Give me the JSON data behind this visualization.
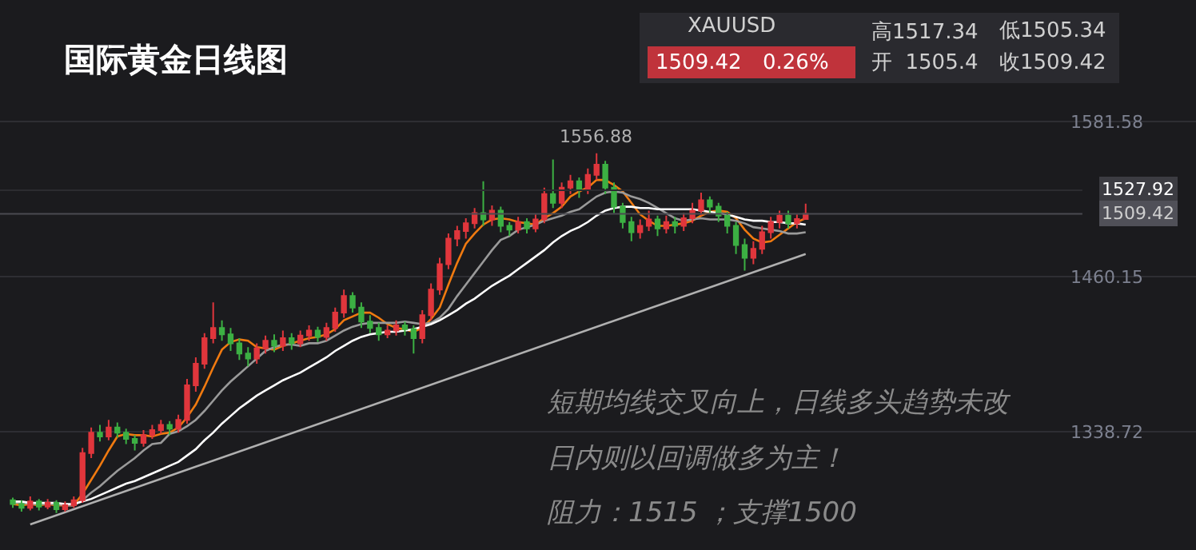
{
  "chart_data": {
    "type": "candlestick",
    "title": "国际黄金日线图",
    "categories": [
      null,
      null,
      null,
      null,
      null,
      null,
      null,
      null,
      null,
      null,
      null,
      null,
      null,
      null,
      null,
      null,
      null,
      null,
      null,
      null,
      null,
      null,
      null,
      null,
      null,
      null,
      null,
      null,
      null,
      null,
      null,
      null,
      null,
      null,
      null,
      null,
      null,
      null,
      null,
      null,
      null,
      null,
      null,
      null,
      null,
      null,
      null,
      null,
      null,
      null,
      null,
      null,
      null,
      null,
      null,
      null,
      null,
      null,
      null,
      null,
      null,
      null,
      null,
      null,
      null,
      null,
      null,
      null,
      null,
      null,
      null,
      null,
      null,
      null,
      null,
      null,
      null,
      null,
      null,
      null,
      null,
      null,
      null,
      null,
      null,
      null,
      null,
      null,
      null,
      null,
      null,
      null
    ],
    "ohlc": [
      [
        1285,
        1287,
        1279,
        1282
      ],
      [
        1282,
        1285,
        1276,
        1279
      ],
      [
        1279,
        1288,
        1277,
        1284
      ],
      [
        1284,
        1286,
        1277,
        1280
      ],
      [
        1280,
        1286,
        1278,
        1283
      ],
      [
        1283,
        1285,
        1275,
        1278
      ],
      [
        1278,
        1284,
        1276,
        1281
      ],
      [
        1281,
        1288,
        1279,
        1285
      ],
      [
        1285,
        1326,
        1283,
        1322
      ],
      [
        1322,
        1342,
        1318,
        1338
      ],
      [
        1338,
        1344,
        1331,
        1335
      ],
      [
        1335,
        1348,
        1332,
        1342
      ],
      [
        1342,
        1346,
        1334,
        1338
      ],
      [
        1338,
        1341,
        1329,
        1333
      ],
      [
        1333,
        1336,
        1324,
        1330
      ],
      [
        1330,
        1340,
        1327,
        1336
      ],
      [
        1336,
        1344,
        1333,
        1340
      ],
      [
        1340,
        1348,
        1337,
        1344
      ],
      [
        1344,
        1347,
        1336,
        1341
      ],
      [
        1341,
        1352,
        1338,
        1348
      ],
      [
        1348,
        1380,
        1345,
        1375
      ],
      [
        1375,
        1397,
        1370,
        1392
      ],
      [
        1392,
        1416,
        1388,
        1412
      ],
      [
        1412,
        1440,
        1408,
        1420
      ],
      [
        1420,
        1426,
        1410,
        1415
      ],
      [
        1415,
        1420,
        1402,
        1408
      ],
      [
        1408,
        1412,
        1395,
        1400
      ],
      [
        1400,
        1405,
        1390,
        1396
      ],
      [
        1396,
        1408,
        1392,
        1404
      ],
      [
        1404,
        1414,
        1400,
        1410
      ],
      [
        1410,
        1415,
        1401,
        1406
      ],
      [
        1406,
        1418,
        1402,
        1412
      ],
      [
        1412,
        1416,
        1403,
        1408
      ],
      [
        1408,
        1418,
        1405,
        1414
      ],
      [
        1414,
        1422,
        1410,
        1418
      ],
      [
        1418,
        1421,
        1409,
        1413
      ],
      [
        1413,
        1424,
        1410,
        1420
      ],
      [
        1420,
        1436,
        1417,
        1432
      ],
      [
        1432,
        1450,
        1428,
        1445
      ],
      [
        1445,
        1448,
        1432,
        1436
      ],
      [
        1436,
        1440,
        1420,
        1425
      ],
      [
        1425,
        1430,
        1416,
        1420
      ],
      [
        1420,
        1424,
        1410,
        1415
      ],
      [
        1415,
        1422,
        1412,
        1418
      ],
      [
        1418,
        1426,
        1414,
        1422
      ],
      [
        1422,
        1425,
        1414,
        1419
      ],
      [
        1419,
        1422,
        1400,
        1412
      ],
      [
        1412,
        1434,
        1408,
        1430
      ],
      [
        1430,
        1455,
        1426,
        1450
      ],
      [
        1450,
        1475,
        1446,
        1470
      ],
      [
        1470,
        1494,
        1466,
        1490
      ],
      [
        1490,
        1500,
        1484,
        1496
      ],
      [
        1496,
        1506,
        1490,
        1502
      ],
      [
        1502,
        1514,
        1498,
        1510
      ],
      [
        1510,
        1535,
        1500,
        1505
      ],
      [
        1505,
        1516,
        1500,
        1512
      ],
      [
        1512,
        1515,
        1495,
        1500
      ],
      [
        1500,
        1503,
        1492,
        1497
      ],
      [
        1497,
        1507,
        1494,
        1503
      ],
      [
        1503,
        1506,
        1494,
        1498
      ],
      [
        1498,
        1509,
        1495,
        1505
      ],
      [
        1505,
        1530,
        1502,
        1525
      ],
      [
        1525,
        1552,
        1514,
        1518
      ],
      [
        1518,
        1534,
        1514,
        1530
      ],
      [
        1530,
        1540,
        1525,
        1535
      ],
      [
        1535,
        1538,
        1522,
        1528
      ],
      [
        1528,
        1545,
        1525,
        1540
      ],
      [
        1540,
        1556.88,
        1536,
        1548
      ],
      [
        1548,
        1551,
        1525,
        1530
      ],
      [
        1530,
        1534,
        1510,
        1515
      ],
      [
        1515,
        1518,
        1498,
        1503
      ],
      [
        1503,
        1507,
        1488,
        1495
      ],
      [
        1495,
        1505,
        1490,
        1500
      ],
      [
        1500,
        1512,
        1496,
        1505
      ],
      [
        1505,
        1508,
        1492,
        1498
      ],
      [
        1498,
        1508,
        1494,
        1503
      ],
      [
        1503,
        1507,
        1494,
        1500
      ],
      [
        1500,
        1510,
        1496,
        1506
      ],
      [
        1506,
        1518,
        1502,
        1512
      ],
      [
        1512,
        1526,
        1508,
        1520
      ],
      [
        1520,
        1523,
        1510,
        1515
      ],
      [
        1515,
        1518,
        1503,
        1508
      ],
      [
        1508,
        1511,
        1494,
        1500
      ],
      [
        1500,
        1503,
        1478,
        1485
      ],
      [
        1485,
        1490,
        1465,
        1475
      ],
      [
        1475,
        1488,
        1470,
        1482
      ],
      [
        1482,
        1500,
        1478,
        1495
      ],
      [
        1495,
        1507,
        1490,
        1503
      ],
      [
        1503,
        1512,
        1498,
        1508
      ],
      [
        1508,
        1512,
        1498,
        1502
      ],
      [
        1502,
        1509,
        1498,
        1505.4
      ],
      [
        1505.4,
        1517.34,
        1505.34,
        1509.42
      ]
    ],
    "colors": [
      "#3cb043",
      "#3cb043",
      "#e0363c",
      "#3cb043",
      "#e0363c",
      "#3cb043",
      "#e0363c",
      "#e0363c",
      "#e0363c",
      "#e0363c",
      "#3cb043",
      "#e0363c",
      "#3cb043",
      "#3cb043",
      "#3cb043",
      "#e0363c",
      "#e0363c",
      "#e0363c",
      "#3cb043",
      "#e0363c",
      "#e0363c",
      "#e0363c",
      "#e0363c",
      "#e0363c",
      "#3cb043",
      "#3cb043",
      "#3cb043",
      "#3cb043",
      "#e0363c",
      "#e0363c",
      "#3cb043",
      "#e0363c",
      "#3cb043",
      "#e0363c",
      "#e0363c",
      "#3cb043",
      "#e0363c",
      "#e0363c",
      "#e0363c",
      "#3cb043",
      "#3cb043",
      "#3cb043",
      "#3cb043",
      "#e0363c",
      "#e0363c",
      "#3cb043",
      "#3cb043",
      "#e0363c",
      "#e0363c",
      "#e0363c",
      "#e0363c",
      "#e0363c",
      "#e0363c",
      "#e0363c",
      "#3cb043",
      "#e0363c",
      "#3cb043",
      "#3cb043",
      "#e0363c",
      "#3cb043",
      "#e0363c",
      "#e0363c",
      "#3cb043",
      "#e0363c",
      "#e0363c",
      "#3cb043",
      "#e0363c",
      "#e0363c",
      "#3cb043",
      "#3cb043",
      "#3cb043",
      "#3cb043",
      "#e0363c",
      "#e0363c",
      "#3cb043",
      "#e0363c",
      "#3cb043",
      "#e0363c",
      "#e0363c",
      "#e0363c",
      "#3cb043",
      "#3cb043",
      "#3cb043",
      "#3cb043",
      "#3cb043",
      "#e0363c",
      "#e0363c",
      "#e0363c",
      "#e0363c",
      "#3cb043",
      "#e0363c",
      "#e0363c"
    ],
    "series": [
      {
        "type": "line",
        "color": "#f07a10",
        "values": [
          1282,
          1281,
          1282,
          1281,
          1282,
          1281,
          1281,
          1281,
          1290,
          1301,
          1312,
          1324,
          1335,
          1337,
          1336,
          1336,
          1335,
          1337,
          1338,
          1342,
          1350,
          1360,
          1374,
          1389,
          1403,
          1409,
          1411,
          1410,
          1405,
          1404,
          1403,
          1406,
          1408,
          1410,
          1412,
          1413,
          1415,
          1419,
          1426,
          1429,
          1432,
          1432,
          1428,
          1423,
          1420,
          1419,
          1417,
          1420,
          1427,
          1436,
          1454,
          1471,
          1486,
          1494,
          1501,
          1505,
          1506,
          1505,
          1503,
          1502,
          1501,
          1506,
          1510,
          1515,
          1523,
          1527,
          1530,
          1536,
          1536,
          1532,
          1527,
          1518,
          1509,
          1504,
          1500,
          1500,
          1501,
          1502,
          1504,
          1508,
          1511,
          1512,
          1511,
          1506,
          1497,
          1490,
          1487,
          1488,
          1493,
          1498,
          1503,
          1506
        ]
      },
      {
        "type": "line",
        "color": "#9a9a9a",
        "values": [
          1283,
          1283,
          1282,
          1282,
          1282,
          1282,
          1281,
          1281,
          1285,
          1291,
          1296,
          1302,
          1308,
          1313,
          1318,
          1324,
          1329,
          1330,
          1337,
          1339,
          1343,
          1348,
          1355,
          1363,
          1371,
          1378,
          1384,
          1390,
          1396,
          1402,
          1405,
          1407,
          1407,
          1406,
          1408,
          1408,
          1410,
          1414,
          1418,
          1421,
          1423,
          1424,
          1424,
          1424,
          1424,
          1425,
          1424,
          1423,
          1424,
          1428,
          1435,
          1445,
          1454,
          1463,
          1472,
          1481,
          1489,
          1492,
          1497,
          1499,
          1501,
          1504,
          1506,
          1508,
          1511,
          1513,
          1518,
          1523,
          1526,
          1527,
          1526,
          1523,
          1521,
          1518,
          1514,
          1510,
          1506,
          1504,
          1505,
          1506,
          1505,
          1505,
          1505,
          1504,
          1502,
          1499,
          1498,
          1497,
          1496,
          1494,
          1494,
          1495
        ]
      },
      {
        "type": "line",
        "color": "#ffffff",
        "values": [
          1284,
          1284,
          1283,
          1283,
          1283,
          1283,
          1282,
          1282,
          1284,
          1286,
          1289,
          1292,
          1295,
          1298,
          1300,
          1303,
          1306,
          1309,
          1312,
          1315,
          1320,
          1325,
          1332,
          1338,
          1345,
          1351,
          1357,
          1362,
          1367,
          1371,
          1375,
          1379,
          1382,
          1385,
          1389,
          1393,
          1397,
          1402,
          1406,
          1410,
          1413,
          1415,
          1416,
          1417,
          1417,
          1418,
          1419,
          1421,
          1423,
          1426,
          1430,
          1434,
          1439,
          1443,
          1448,
          1453,
          1457,
          1461,
          1466,
          1471,
          1476,
          1481,
          1487,
          1492,
          1496,
          1499,
          1503,
          1508,
          1512,
          1514,
          1515,
          1515,
          1514,
          1514,
          1513,
          1513,
          1513,
          1513,
          1513,
          1512,
          1511,
          1510,
          1509,
          1507,
          1505,
          1504,
          1504,
          1503,
          1503,
          1502,
          1502,
          1501
        ]
      },
      {
        "type": "line",
        "color": "#b0b0b0",
        "values": [
          null,
          null,
          1266,
          null,
          null,
          null,
          null,
          null,
          null,
          null,
          null,
          null,
          null,
          null,
          null,
          null,
          null,
          null,
          null,
          null,
          null,
          null,
          null,
          null,
          null,
          null,
          null,
          null,
          null,
          null,
          null,
          null,
          null,
          null,
          null,
          null,
          null,
          null,
          null,
          null,
          null,
          null,
          null,
          null,
          null,
          null,
          null,
          null,
          null,
          null,
          null,
          null,
          null,
          null,
          null,
          null,
          null,
          null,
          null,
          null,
          null,
          null,
          null,
          null,
          null,
          null,
          null,
          null,
          null,
          null,
          null,
          null,
          null,
          null,
          null,
          null,
          null,
          null,
          null,
          null,
          null,
          null,
          null,
          null,
          null,
          null,
          null,
          null,
          null,
          null,
          null,
          1478
        ]
      }
    ],
    "ylim": [
      1246,
      1677
    ],
    "yticks": [
      1581.58,
      1460.15,
      1338.72
    ],
    "grid": "y",
    "tick_labels": "y",
    "ref_lines": [
      {
        "axis": "y",
        "value": 1527.92,
        "label": "1527.92",
        "color": "#2c2c30"
      },
      {
        "axis": "y",
        "value": 1509.42,
        "label": "1509.42",
        "color": "#4a4a50"
      }
    ],
    "annotations": [
      "XAUUSD",
      "1509.42",
      "0.26%",
      "高1517.34",
      "低1505.34",
      "开  1505.4",
      "收1509.42",
      "短期均线交叉向上，日线多头趋势未改",
      "日内则以回调做多为主！",
      "阻力：1515 ；支撑1500",
      {
        "text": "1556.88",
        "y": 1556.88
      }
    ]
  }
}
